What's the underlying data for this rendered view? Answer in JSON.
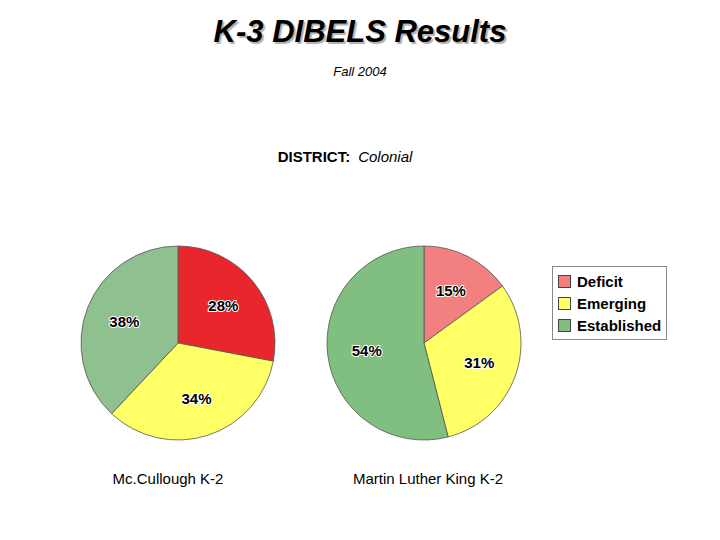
{
  "header": {
    "title": "K-3 DIBELS Results",
    "subtitle": "Fall 2004",
    "district_label": "DISTRICT:",
    "district": "Colonial"
  },
  "chart_data": [
    {
      "type": "pie",
      "title": "Mc.Cullough K-2",
      "categories": [
        "Deficit",
        "Emerging",
        "Established"
      ],
      "values": [
        28,
        34,
        38
      ],
      "value_labels": [
        "28%",
        "34%",
        "38%"
      ],
      "colors": [
        "#e8262b",
        "#ffff66",
        "#8fc08f"
      ],
      "data_labels": true
    },
    {
      "type": "pie",
      "title": "Martin Luther King K-2",
      "categories": [
        "Deficit",
        "Emerging",
        "Established"
      ],
      "values": [
        15,
        31,
        54
      ],
      "value_labels": [
        "15%",
        "31%",
        "54%"
      ],
      "colors": [
        "#f28080",
        "#ffff66",
        "#80bf80"
      ],
      "data_labels": true,
      "legend": "right"
    }
  ]
}
